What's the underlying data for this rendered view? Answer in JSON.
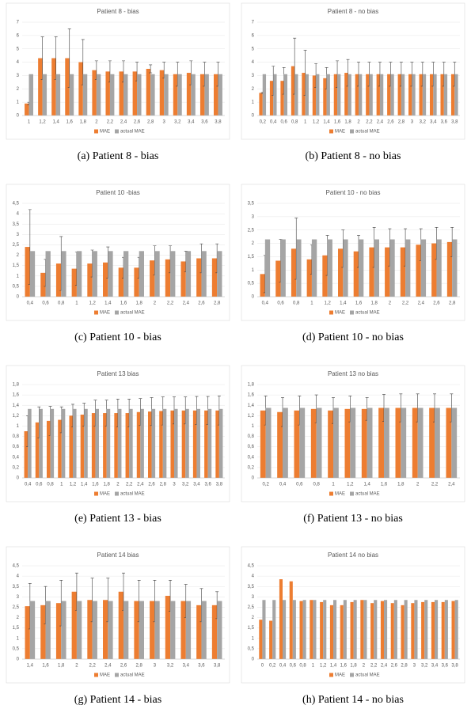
{
  "chart_data": [
    {
      "type": "bar",
      "title": "Patient 8 - bias",
      "caption": "(a)  Patient 8 - bias",
      "categories": [
        "1",
        "1,2",
        "1,4",
        "1,6",
        "1,8",
        "2",
        "2,2",
        "2,4",
        "2,6",
        "2,8",
        "3",
        "3,2",
        "3,4",
        "3,6",
        "3,8"
      ],
      "series": [
        {
          "name": "MAE",
          "color": "#ed7d31",
          "values": [
            0.9,
            4.3,
            4.3,
            4.3,
            4.0,
            3.4,
            3.3,
            3.3,
            3.3,
            3.5,
            3.4,
            3.1,
            3.2,
            3.1,
            3.1
          ],
          "errors": [
            0.1,
            1.6,
            1.6,
            2.2,
            1.7,
            0.7,
            0.8,
            0.8,
            0.7,
            0.3,
            0.6,
            0.9,
            0.9,
            0.9,
            0.9
          ]
        },
        {
          "name": "actual MAE",
          "color": "#a5a5a5",
          "values": [
            3.1,
            3.1,
            3.1,
            3.1,
            3.1,
            3.1,
            3.1,
            3.1,
            3.1,
            3.1,
            3.1,
            3.1,
            3.1,
            3.1,
            3.1
          ]
        }
      ],
      "ylim": [
        0,
        7
      ],
      "yticks": [
        0,
        1,
        2,
        3,
        4,
        5,
        6,
        7
      ]
    },
    {
      "type": "bar",
      "title": "Patient 8 - no bias",
      "caption": "(b)  Patient 8 - no bias",
      "categories": [
        "0,2",
        "0,4",
        "0,6",
        "0,8",
        "1",
        "1,2",
        "1,4",
        "1,6",
        "1,8",
        "2",
        "2,2",
        "2,4",
        "2,6",
        "2,8",
        "3",
        "3,2",
        "3,4",
        "3,6",
        "3,8"
      ],
      "series": [
        {
          "name": "MAE",
          "color": "#ed7d31",
          "values": [
            1.7,
            2.6,
            2.6,
            3.7,
            3.2,
            3.0,
            2.8,
            3.1,
            3.2,
            3.1,
            3.1,
            3.1,
            3.1,
            3.1,
            3.1,
            3.1,
            3.1,
            3.1,
            3.1
          ],
          "errors": [
            0.05,
            1.1,
            1.0,
            2.1,
            1.7,
            0.9,
            0.8,
            1.0,
            1.0,
            0.9,
            0.9,
            0.9,
            0.9,
            0.9,
            0.9,
            0.9,
            0.9,
            0.9,
            0.9
          ]
        },
        {
          "name": "actual MAE",
          "color": "#a5a5a5",
          "values": [
            3.1,
            3.1,
            3.1,
            3.1,
            3.1,
            3.1,
            3.1,
            3.1,
            3.1,
            3.1,
            3.1,
            3.1,
            3.1,
            3.1,
            3.1,
            3.1,
            3.1,
            3.1,
            3.1
          ]
        }
      ],
      "ylim": [
        0,
        7
      ],
      "yticks": [
        0,
        1,
        2,
        3,
        4,
        5,
        6,
        7
      ]
    },
    {
      "type": "bar",
      "title": "Patient 10 -bias",
      "caption": "(c)  Patient 10 - bias",
      "categories": [
        "0,4",
        "0,6",
        "0,8",
        "1",
        "1,2",
        "1,4",
        "1,6",
        "1,8",
        "2",
        "2,2",
        "2,4",
        "2,6",
        "2,8"
      ],
      "series": [
        {
          "name": "MAE",
          "color": "#ed7d31",
          "values": [
            2.4,
            1.15,
            1.6,
            1.35,
            1.6,
            1.65,
            1.4,
            1.4,
            1.75,
            1.8,
            1.7,
            1.85,
            1.85
          ],
          "errors": [
            1.8,
            0.65,
            1.3,
            0.8,
            0.65,
            0.75,
            0.5,
            0.5,
            0.7,
            0.65,
            0.5,
            0.7,
            0.7
          ]
        },
        {
          "name": "actual MAE",
          "color": "#a5a5a5",
          "values": [
            2.2,
            2.2,
            2.2,
            2.2,
            2.2,
            2.2,
            2.2,
            2.2,
            2.2,
            2.2,
            2.2,
            2.2,
            2.2
          ]
        }
      ],
      "ylim": [
        0,
        4.5
      ],
      "yticks": [
        0,
        {
          "value": 0.5,
          "label": "0,5"
        },
        1,
        {
          "value": 1.5,
          "label": "1,5"
        },
        2,
        {
          "value": 2.5,
          "label": "2,5"
        },
        3,
        {
          "value": 3.5,
          "label": "3,5"
        },
        4,
        {
          "value": 4.5,
          "label": "4,5"
        }
      ]
    },
    {
      "type": "bar",
      "title": "Patient 10 - no bias",
      "caption": "(d)  Patient 10 - no bias",
      "categories": [
        "0,4",
        "0,6",
        "0,8",
        "1",
        "1,2",
        "1,4",
        "1,6",
        "1,8",
        "2",
        "2,2",
        "2,4",
        "2,6",
        "2,8"
      ],
      "series": [
        {
          "name": "MAE",
          "color": "#ed7d31",
          "values": [
            0.85,
            1.35,
            1.8,
            1.4,
            1.55,
            1.8,
            1.7,
            1.85,
            1.85,
            1.85,
            1.95,
            2.0,
            2.05
          ],
          "errors": [
            0.7,
            0.8,
            1.15,
            0.55,
            0.75,
            0.7,
            0.6,
            0.75,
            0.7,
            0.7,
            0.6,
            0.6,
            0.55
          ]
        },
        {
          "name": "actual MAE",
          "color": "#a5a5a5",
          "values": [
            2.15,
            2.15,
            2.15,
            2.15,
            2.15,
            2.15,
            2.15,
            2.15,
            2.15,
            2.15,
            2.15,
            2.15,
            2.15
          ]
        }
      ],
      "ylim": [
        0,
        3.5
      ],
      "yticks": [
        0,
        {
          "value": 0.5,
          "label": "0,5"
        },
        1,
        {
          "value": 1.5,
          "label": "1,5"
        },
        2,
        {
          "value": 2.5,
          "label": "2,5"
        },
        3,
        {
          "value": 3.5,
          "label": "3,5"
        }
      ]
    },
    {
      "type": "bar",
      "title": "Patient 13 bias",
      "caption": "(e)  Patient 13 - bias",
      "categories": [
        "0,4",
        "0,6",
        "0,8",
        "1",
        "1,2",
        "1,4",
        "1,6",
        "1,8",
        "2",
        "2,2",
        "2,4",
        "2,6",
        "2,8",
        "3",
        "3,2",
        "3,4",
        "3,6",
        "3,8"
      ],
      "series": [
        {
          "name": "MAE",
          "color": "#ed7d31",
          "values": [
            0.9,
            1.07,
            1.1,
            1.12,
            1.2,
            1.22,
            1.25,
            1.25,
            1.25,
            1.25,
            1.27,
            1.28,
            1.29,
            1.3,
            1.3,
            1.3,
            1.3,
            1.3
          ],
          "errors": [
            0.3,
            0.3,
            0.28,
            0.25,
            0.22,
            0.22,
            0.25,
            0.25,
            0.27,
            0.27,
            0.26,
            0.27,
            0.27,
            0.26,
            0.26,
            0.27,
            0.27,
            0.28
          ]
        },
        {
          "name": "actual MAE",
          "color": "#a5a5a5",
          "values": [
            1.33,
            1.33,
            1.33,
            1.33,
            1.33,
            1.33,
            1.33,
            1.33,
            1.33,
            1.33,
            1.33,
            1.33,
            1.33,
            1.33,
            1.33,
            1.33,
            1.33,
            1.33
          ]
        }
      ],
      "ylim": [
        0,
        1.8
      ],
      "yticks": [
        0,
        {
          "value": 0.2,
          "label": "0,2"
        },
        {
          "value": 0.4,
          "label": "0,4"
        },
        {
          "value": 0.6,
          "label": "0,6"
        },
        {
          "value": 0.8,
          "label": "0,8"
        },
        1,
        {
          "value": 1.2,
          "label": "1,2"
        },
        {
          "value": 1.4,
          "label": "1,4"
        },
        {
          "value": 1.6,
          "label": "1,6"
        },
        {
          "value": 1.8,
          "label": "1,8"
        }
      ]
    },
    {
      "type": "bar",
      "title": "Patient 13 no bias",
      "caption": "(f)  Patient 13 - no bias",
      "categories": [
        "0,2",
        "0,4",
        "0,6",
        "0,8",
        "1",
        "1,2",
        "1,4",
        "1,6",
        "1,8",
        "2",
        "2,2",
        "2,4"
      ],
      "series": [
        {
          "name": "MAE",
          "color": "#ed7d31",
          "values": [
            1.3,
            1.27,
            1.3,
            1.33,
            1.3,
            1.33,
            1.33,
            1.35,
            1.35,
            1.35,
            1.35,
            1.35
          ],
          "errors": [
            0.28,
            0.28,
            0.28,
            0.27,
            0.25,
            0.25,
            0.22,
            0.26,
            0.27,
            0.27,
            0.27,
            0.27
          ]
        },
        {
          "name": "actual MAE",
          "color": "#a5a5a5",
          "values": [
            1.35,
            1.35,
            1.35,
            1.35,
            1.35,
            1.35,
            1.35,
            1.35,
            1.35,
            1.35,
            1.35,
            1.35
          ]
        }
      ],
      "ylim": [
        0,
        1.8
      ],
      "yticks": [
        0,
        {
          "value": 0.2,
          "label": "0,2"
        },
        {
          "value": 0.4,
          "label": "0,4"
        },
        {
          "value": 0.6,
          "label": "0,6"
        },
        {
          "value": 0.8,
          "label": "0,8"
        },
        1,
        {
          "value": 1.2,
          "label": "1,2"
        },
        {
          "value": 1.4,
          "label": "1,4"
        },
        {
          "value": 1.6,
          "label": "1,6"
        },
        {
          "value": 1.8,
          "label": "1,8"
        }
      ]
    },
    {
      "type": "bar",
      "title": "Patient 14 bias",
      "caption": "(g)  Patient 14 - bias",
      "categories": [
        "1,4",
        "1,6",
        "1,8",
        "2",
        "2,2",
        "2,4",
        "2,6",
        "2,8",
        "3",
        "3,2",
        "3,4",
        "3,6",
        "3,8"
      ],
      "series": [
        {
          "name": "MAE",
          "color": "#ed7d31",
          "values": [
            2.55,
            2.6,
            2.7,
            3.25,
            2.85,
            2.85,
            3.25,
            2.8,
            2.8,
            3.05,
            2.8,
            2.6,
            2.6
          ],
          "errors": [
            1.1,
            0.9,
            1.1,
            0.9,
            1.05,
            1.05,
            0.9,
            1.0,
            1.0,
            0.75,
            0.8,
            0.8,
            0.65
          ]
        },
        {
          "name": "actual MAE",
          "color": "#a5a5a5",
          "values": [
            2.8,
            2.8,
            2.8,
            2.8,
            2.8,
            2.8,
            2.8,
            2.8,
            2.8,
            2.8,
            2.8,
            2.8,
            2.8
          ]
        }
      ],
      "ylim": [
        0,
        4.5
      ],
      "yticks": [
        0,
        {
          "value": 0.5,
          "label": "0,5"
        },
        1,
        {
          "value": 1.5,
          "label": "1,5"
        },
        2,
        {
          "value": 2.5,
          "label": "2,5"
        },
        3,
        {
          "value": 3.5,
          "label": "3,5"
        },
        4,
        {
          "value": 4.5,
          "label": "4,5"
        }
      ]
    },
    {
      "type": "bar",
      "title": "Patient 14 no bias",
      "caption": "(h)  Patient 14 - no bias",
      "categories": [
        "0",
        "0,2",
        "0,4",
        "0,6",
        "0,8",
        "1",
        "1,2",
        "1,4",
        "1,6",
        "1,8",
        "2",
        "2,2",
        "2,4",
        "2,6",
        "2,8",
        "3",
        "3,2",
        "3,4",
        "3,6",
        "3,8"
      ],
      "series": [
        {
          "name": "MAE",
          "color": "#ed7d31",
          "values": [
            1.9,
            1.85,
            3.85,
            3.75,
            2.8,
            2.85,
            2.75,
            2.6,
            2.6,
            2.75,
            2.85,
            2.7,
            2.8,
            2.7,
            2.6,
            2.7,
            2.75,
            2.75,
            2.75,
            2.8
          ]
        },
        {
          "name": "actual MAE",
          "color": "#a5a5a5",
          "values": [
            2.85,
            2.85,
            2.85,
            2.85,
            2.85,
            2.85,
            2.85,
            2.85,
            2.85,
            2.85,
            2.85,
            2.85,
            2.85,
            2.85,
            2.85,
            2.85,
            2.85,
            2.85,
            2.85,
            2.85
          ]
        }
      ],
      "ylim": [
        0,
        4.5
      ],
      "yticks": [
        0,
        {
          "value": 0.5,
          "label": "0,5"
        },
        1,
        {
          "value": 1.5,
          "label": "1,5"
        },
        2,
        {
          "value": 2.5,
          "label": "2,5"
        },
        3,
        {
          "value": 3.5,
          "label": "3,5"
        },
        4,
        {
          "value": 4.5,
          "label": "4,5"
        }
      ]
    }
  ]
}
